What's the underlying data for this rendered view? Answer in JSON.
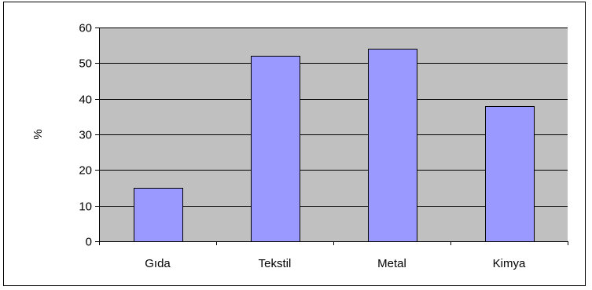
{
  "chart_data": {
    "type": "bar",
    "title": "",
    "xlabel": "",
    "ylabel": "%",
    "categories": [
      "Gıda",
      "Tekstil",
      "Metal",
      "Kimya"
    ],
    "values": [
      15,
      52,
      54,
      38
    ],
    "ylim": [
      0,
      60
    ],
    "yticks": [
      0,
      10,
      20,
      30,
      40,
      50,
      60
    ],
    "grid": true,
    "legend": "none",
    "colors": {
      "bar_fill": "#9999ff",
      "bar_stroke": "#000000",
      "plot_background": "#c0c0c0",
      "gridline": "#000000"
    }
  }
}
